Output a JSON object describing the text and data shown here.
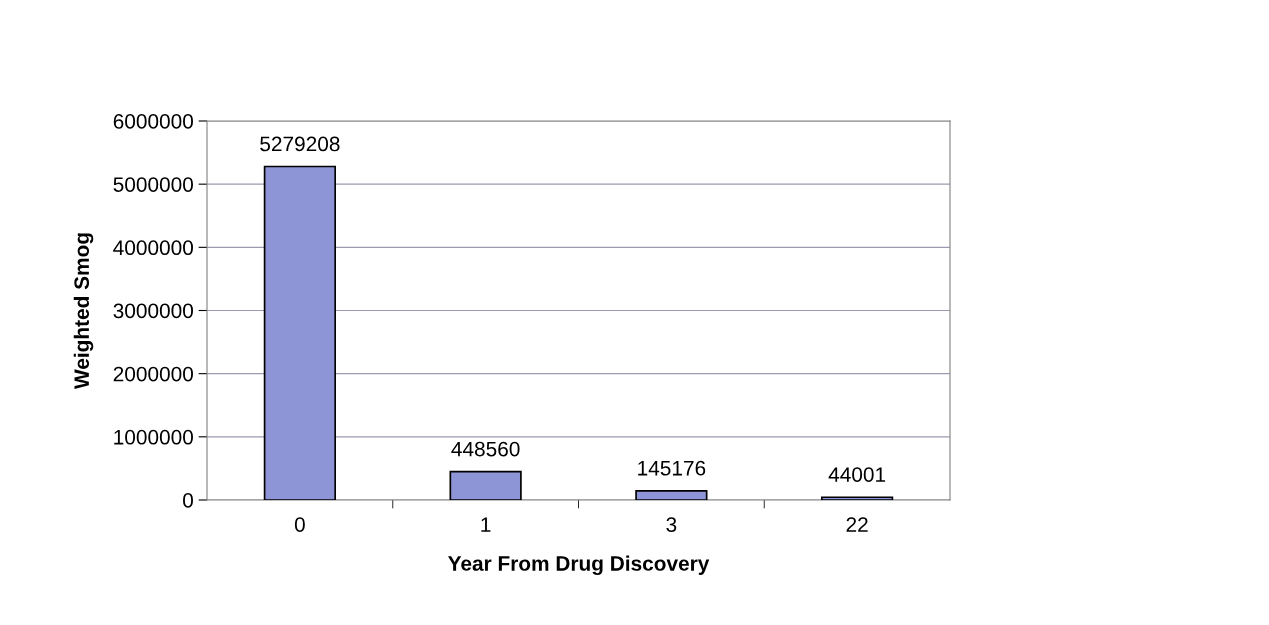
{
  "chart_data": {
    "type": "bar",
    "xlabel": "Year From Drug Discovery",
    "ylabel": "Weighted Smog",
    "categories": [
      "0",
      "1",
      "3",
      "22"
    ],
    "values": [
      5279208,
      448560,
      145176,
      44001
    ],
    "color": "#8e95d6",
    "ylim": [
      0,
      6000000
    ],
    "yticks": [
      0,
      1000000,
      2000000,
      3000000,
      4000000,
      5000000,
      6000000
    ],
    "grid": "y",
    "data_labels": true
  }
}
